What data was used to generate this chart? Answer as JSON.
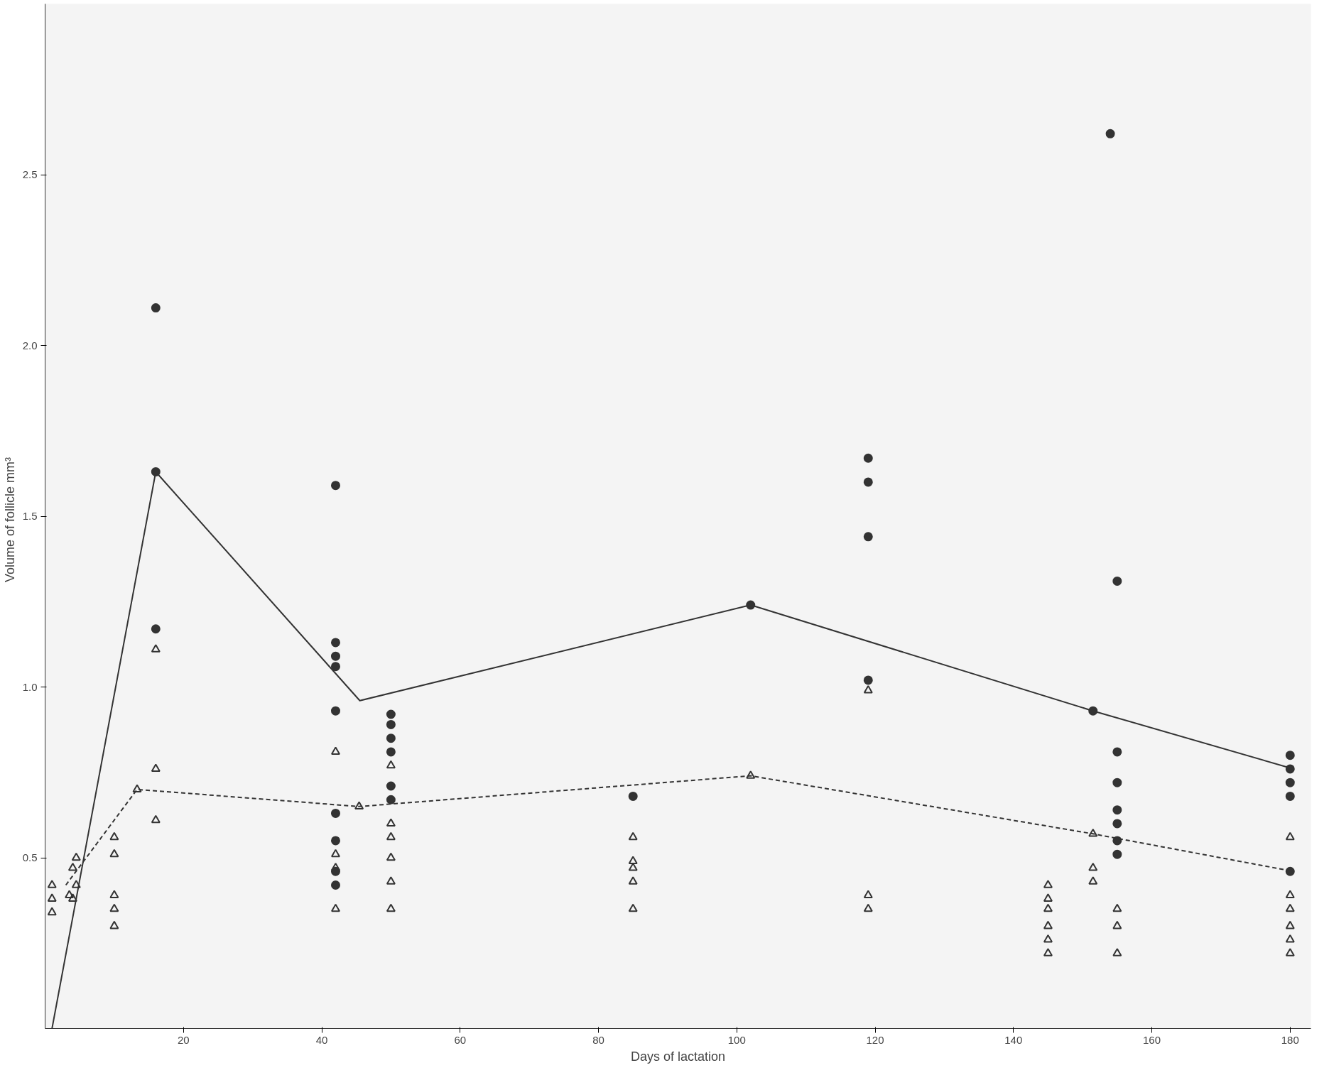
{
  "chart_data": {
    "type": "scatter",
    "xlabel": "Days of lactation",
    "ylabel": "Volume of follicle   mm³",
    "xlim": [
      0,
      183
    ],
    "ylim": [
      0,
      3.0
    ],
    "xticks": [
      20,
      40,
      60,
      80,
      100,
      120,
      140,
      160,
      180
    ],
    "yticks": [
      0.5,
      {
        "value": 1,
        "label": "1.0"
      },
      1.5,
      {
        "value": 2,
        "label": "2.0"
      },
      2.5
    ],
    "grid": false,
    "series": [
      {
        "type": "line",
        "line_style": "solid",
        "marker": "none",
        "color": "#333333",
        "x": [
          1,
          16,
          45.5,
          102,
          151.5,
          180.5
        ],
        "values": [
          0,
          1.63,
          0.96,
          1.24,
          0.93,
          0.76
        ]
      },
      {
        "type": "line",
        "line_style": "dashed",
        "marker": "none",
        "color": "#333333",
        "x": [
          3,
          13.3,
          45.4,
          102,
          151.5,
          180.5
        ],
        "values": [
          0.42,
          0.7,
          0.65,
          0.74,
          0.57,
          0.46
        ]
      },
      {
        "marker": "circle",
        "color": "#333333",
        "x": [
          16,
          16,
          16,
          42,
          42,
          42,
          42,
          42,
          42,
          42,
          42,
          42,
          50,
          50,
          50,
          50,
          50,
          50,
          85,
          102,
          119,
          119,
          119,
          119,
          151.5,
          154,
          155,
          155,
          155,
          155,
          155,
          155,
          155,
          180,
          180,
          180,
          180,
          180
        ],
        "values": [
          2.11,
          1.63,
          1.17,
          1.59,
          1.13,
          1.09,
          1.06,
          0.93,
          0.63,
          0.55,
          0.46,
          0.42,
          0.92,
          0.89,
          0.85,
          0.81,
          0.71,
          0.67,
          0.68,
          1.24,
          1.67,
          1.6,
          1.44,
          1.02,
          0.93,
          2.62,
          1.31,
          0.81,
          0.72,
          0.64,
          0.6,
          0.55,
          0.51,
          0.8,
          0.76,
          0.72,
          0.68,
          0.46
        ]
      },
      {
        "marker": "triangle",
        "color": "#333333",
        "x": [
          1,
          1,
          1,
          3.5,
          4,
          4,
          4.5,
          4.5,
          10,
          10,
          10,
          10,
          10,
          13.3,
          16,
          16,
          16,
          42,
          42,
          42,
          42,
          45.4,
          50,
          50,
          50,
          50,
          50,
          50,
          85,
          85,
          85,
          85,
          85,
          102,
          119,
          119,
          119,
          145,
          145,
          145,
          145,
          145,
          145,
          151.5,
          151.5,
          151.5,
          155,
          155,
          155,
          180,
          180,
          180,
          180,
          180,
          180
        ],
        "values": [
          0.42,
          0.38,
          0.34,
          0.39,
          0.47,
          0.38,
          0.5,
          0.42,
          0.56,
          0.51,
          0.39,
          0.35,
          0.3,
          0.7,
          1.11,
          0.76,
          0.61,
          0.81,
          0.51,
          0.47,
          0.35,
          0.65,
          0.77,
          0.6,
          0.56,
          0.5,
          0.43,
          0.35,
          0.56,
          0.49,
          0.47,
          0.43,
          0.35,
          0.74,
          0.99,
          0.39,
          0.35,
          0.42,
          0.38,
          0.35,
          0.3,
          0.26,
          0.22,
          0.57,
          0.47,
          0.43,
          0.35,
          0.3,
          0.22,
          0.56,
          0.39,
          0.35,
          0.3,
          0.26,
          0.22
        ]
      }
    ]
  }
}
